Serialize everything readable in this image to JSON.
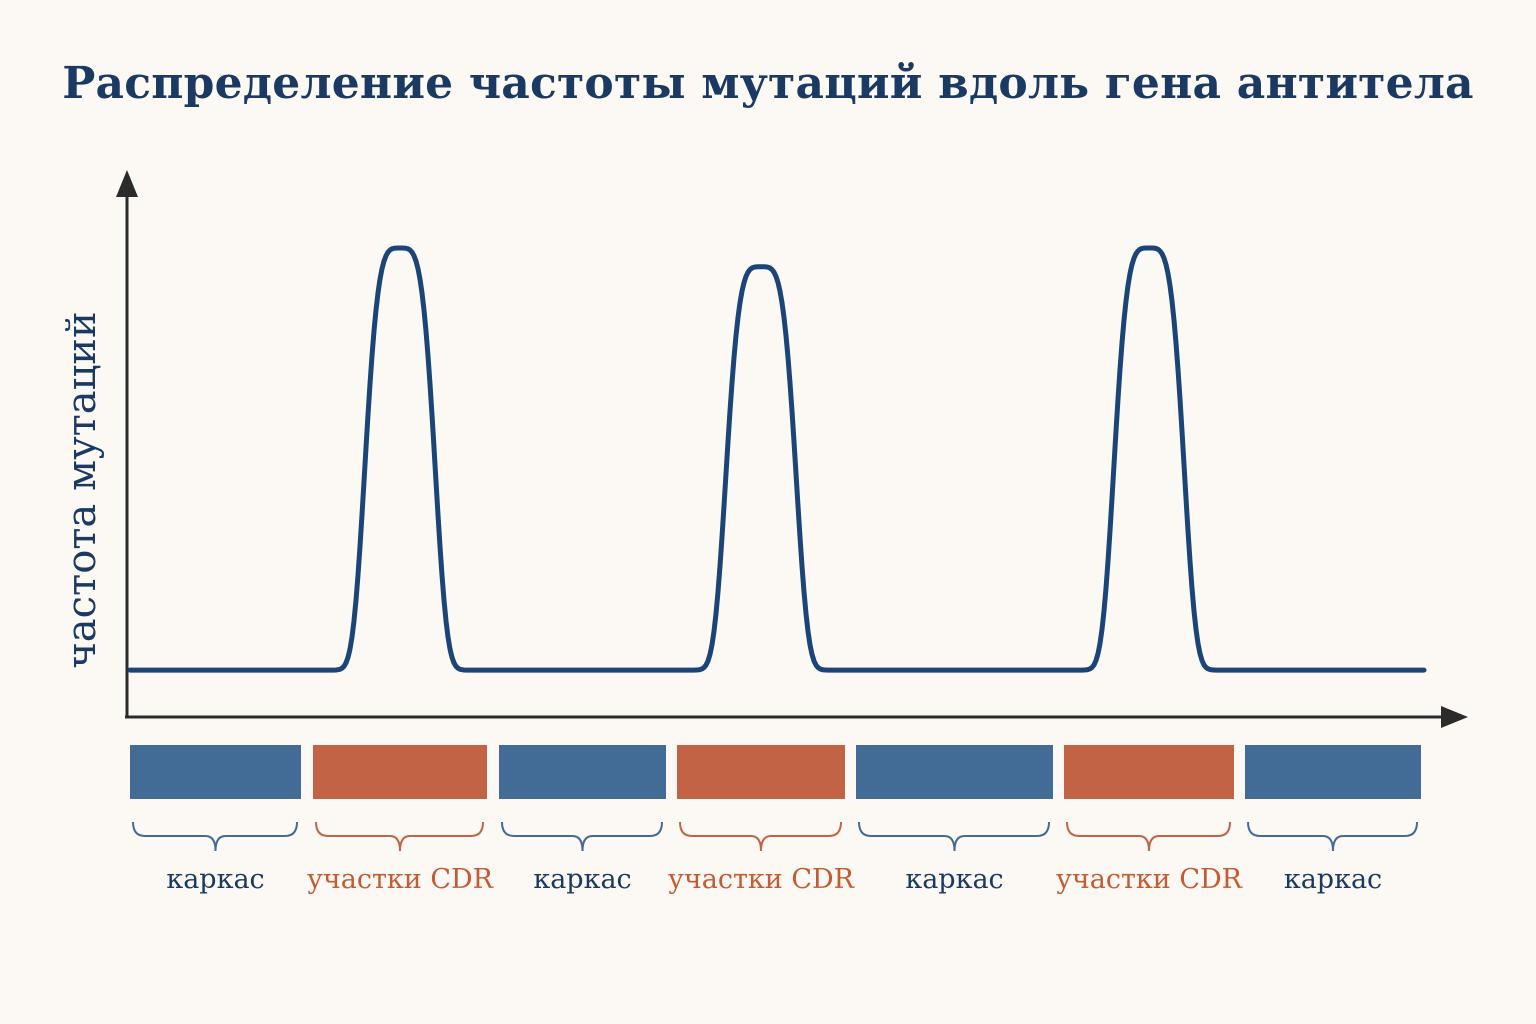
{
  "title": "Распределение частоты мутаций вдоль гена антитела",
  "y_axis_label": "частота мутаций",
  "colors": {
    "background": "#fcf9f4",
    "curve": "#1b4478",
    "axis": "#2b2b2b",
    "framework": "#426c96",
    "cdr": "#c26345",
    "framework_text": "#1b3a63",
    "cdr_text": "#c65a33"
  },
  "curve": {
    "baseline_level": 0.1,
    "peaks": [
      {
        "segment": 1,
        "level": 1.0
      },
      {
        "segment": 3,
        "level": 0.96
      },
      {
        "segment": 5,
        "level": 1.0
      }
    ]
  },
  "segments": [
    {
      "kind": "framework",
      "label": "каркас"
    },
    {
      "kind": "cdr",
      "label": "участки CDR"
    },
    {
      "kind": "framework",
      "label": "каркас"
    },
    {
      "kind": "cdr",
      "label": "участки CDR"
    },
    {
      "kind": "framework",
      "label": "каркас"
    },
    {
      "kind": "cdr",
      "label": "участки CDR"
    },
    {
      "kind": "framework",
      "label": "каркас"
    }
  ]
}
